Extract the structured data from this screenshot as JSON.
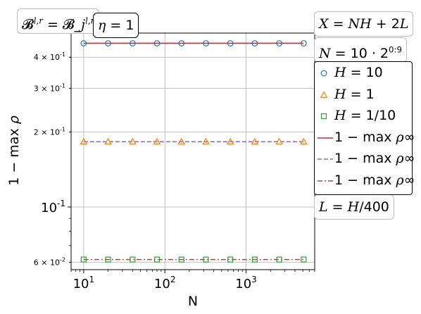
{
  "annotations": {
    "basis": "𝓑^{l,r} = 𝓑_j^{l,r}",
    "eta": "η = 1",
    "x_def": "X = NH + 2L",
    "n_def": "N = 10 · 2^{0:9}",
    "l_def": "L = H/400"
  },
  "legend": {
    "items": [
      {
        "label": "H = 10",
        "marker": "circle",
        "color": "#1f77b4"
      },
      {
        "label": "H = 1",
        "marker": "triangle",
        "color": "#ff7f0e"
      },
      {
        "label": "H = 1/10",
        "marker": "square",
        "color": "#2ca02c"
      },
      {
        "label": "1 − max ρ∞",
        "line": "solid",
        "color": "#d62728"
      },
      {
        "label": "1 − max ρ∞",
        "line": "dashed",
        "color": "#9467bd"
      },
      {
        "label": "1 − max ρ∞",
        "line": "dashdot",
        "color": "#8c564b"
      }
    ]
  },
  "chart_data": {
    "type": "line",
    "xlabel": "N",
    "ylabel": "1 − max ρ",
    "xscale": "log",
    "yscale": "log",
    "xlim": [
      7.0,
      7000
    ],
    "ylim": [
      0.056,
      0.5
    ],
    "grid": true,
    "x": [
      10,
      20,
      40,
      80,
      160,
      320,
      640,
      1280,
      2560,
      5120
    ],
    "x_ticks": [
      {
        "value": 10,
        "label": "10^1"
      },
      {
        "value": 100,
        "label": "10^2"
      },
      {
        "value": 1000,
        "label": "10^3"
      }
    ],
    "y_ticks": [
      {
        "value": 0.4,
        "label": "4 × 10^-1",
        "major": false
      },
      {
        "value": 0.3,
        "label": "3 × 10^-1",
        "major": false
      },
      {
        "value": 0.2,
        "label": "2 × 10^-1",
        "major": false
      },
      {
        "value": 0.1,
        "label": "10^-1",
        "major": true
      },
      {
        "value": 0.06,
        "label": "6 × 10^-2",
        "major": false
      }
    ],
    "series": [
      {
        "name": "H = 10",
        "marker": "circle",
        "color": "#1f77b4",
        "values": [
          0.455,
          0.455,
          0.455,
          0.455,
          0.455,
          0.455,
          0.455,
          0.455,
          0.455,
          0.455
        ]
      },
      {
        "name": "H = 1",
        "marker": "triangle",
        "color": "#ff7f0e",
        "values": [
          0.183,
          0.183,
          0.183,
          0.183,
          0.183,
          0.183,
          0.183,
          0.183,
          0.183,
          0.183
        ]
      },
      {
        "name": "H = 1/10",
        "marker": "square",
        "color": "#2ca02c",
        "values": [
          0.0615,
          0.0615,
          0.0615,
          0.0615,
          0.0615,
          0.0615,
          0.0615,
          0.0615,
          0.0615,
          0.0615
        ]
      }
    ],
    "reference_lines": [
      {
        "name": "1 − max ρ∞",
        "value": 0.455,
        "color": "#d62728",
        "style": "solid"
      },
      {
        "name": "1 − max ρ∞",
        "value": 0.183,
        "color": "#9467bd",
        "style": "dashed"
      },
      {
        "name": "1 − max ρ∞",
        "value": 0.0615,
        "color": "#8c564b",
        "style": "dashdot"
      }
    ]
  }
}
